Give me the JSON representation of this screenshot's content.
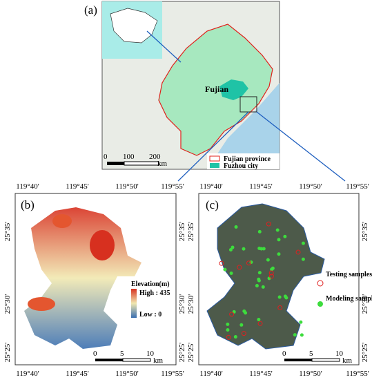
{
  "panel_a": {
    "label": "(a)",
    "province_label": "Fujian",
    "legend": [
      "Fujian province",
      "Fuzhou city"
    ],
    "scale": {
      "ticks": [
        "0",
        "100",
        "200"
      ],
      "unit": "km"
    }
  },
  "panel_b": {
    "label": "(b)",
    "lon_labels": [
      "119°40'",
      "119°45'",
      "119°50'",
      "119°55'"
    ],
    "lat_labels": [
      "25°35'",
      "25°30'",
      "25°25'"
    ],
    "legend_title": "Elevation(m)",
    "legend_high": "High : 435",
    "legend_low": "Low : 0",
    "scale": {
      "ticks": [
        "0",
        "5",
        "10"
      ],
      "unit": "km"
    }
  },
  "panel_c": {
    "label": "(c)",
    "lon_labels": [
      "119°40'",
      "119°45'",
      "119°50'",
      "119°55'"
    ],
    "lat_labels": [
      "25°35'",
      "25°30'",
      "25°25'"
    ],
    "legend": [
      "Testing samples",
      "Modeling samples"
    ],
    "scale": {
      "ticks": [
        "0",
        "5",
        "10"
      ],
      "unit": "km"
    }
  }
}
